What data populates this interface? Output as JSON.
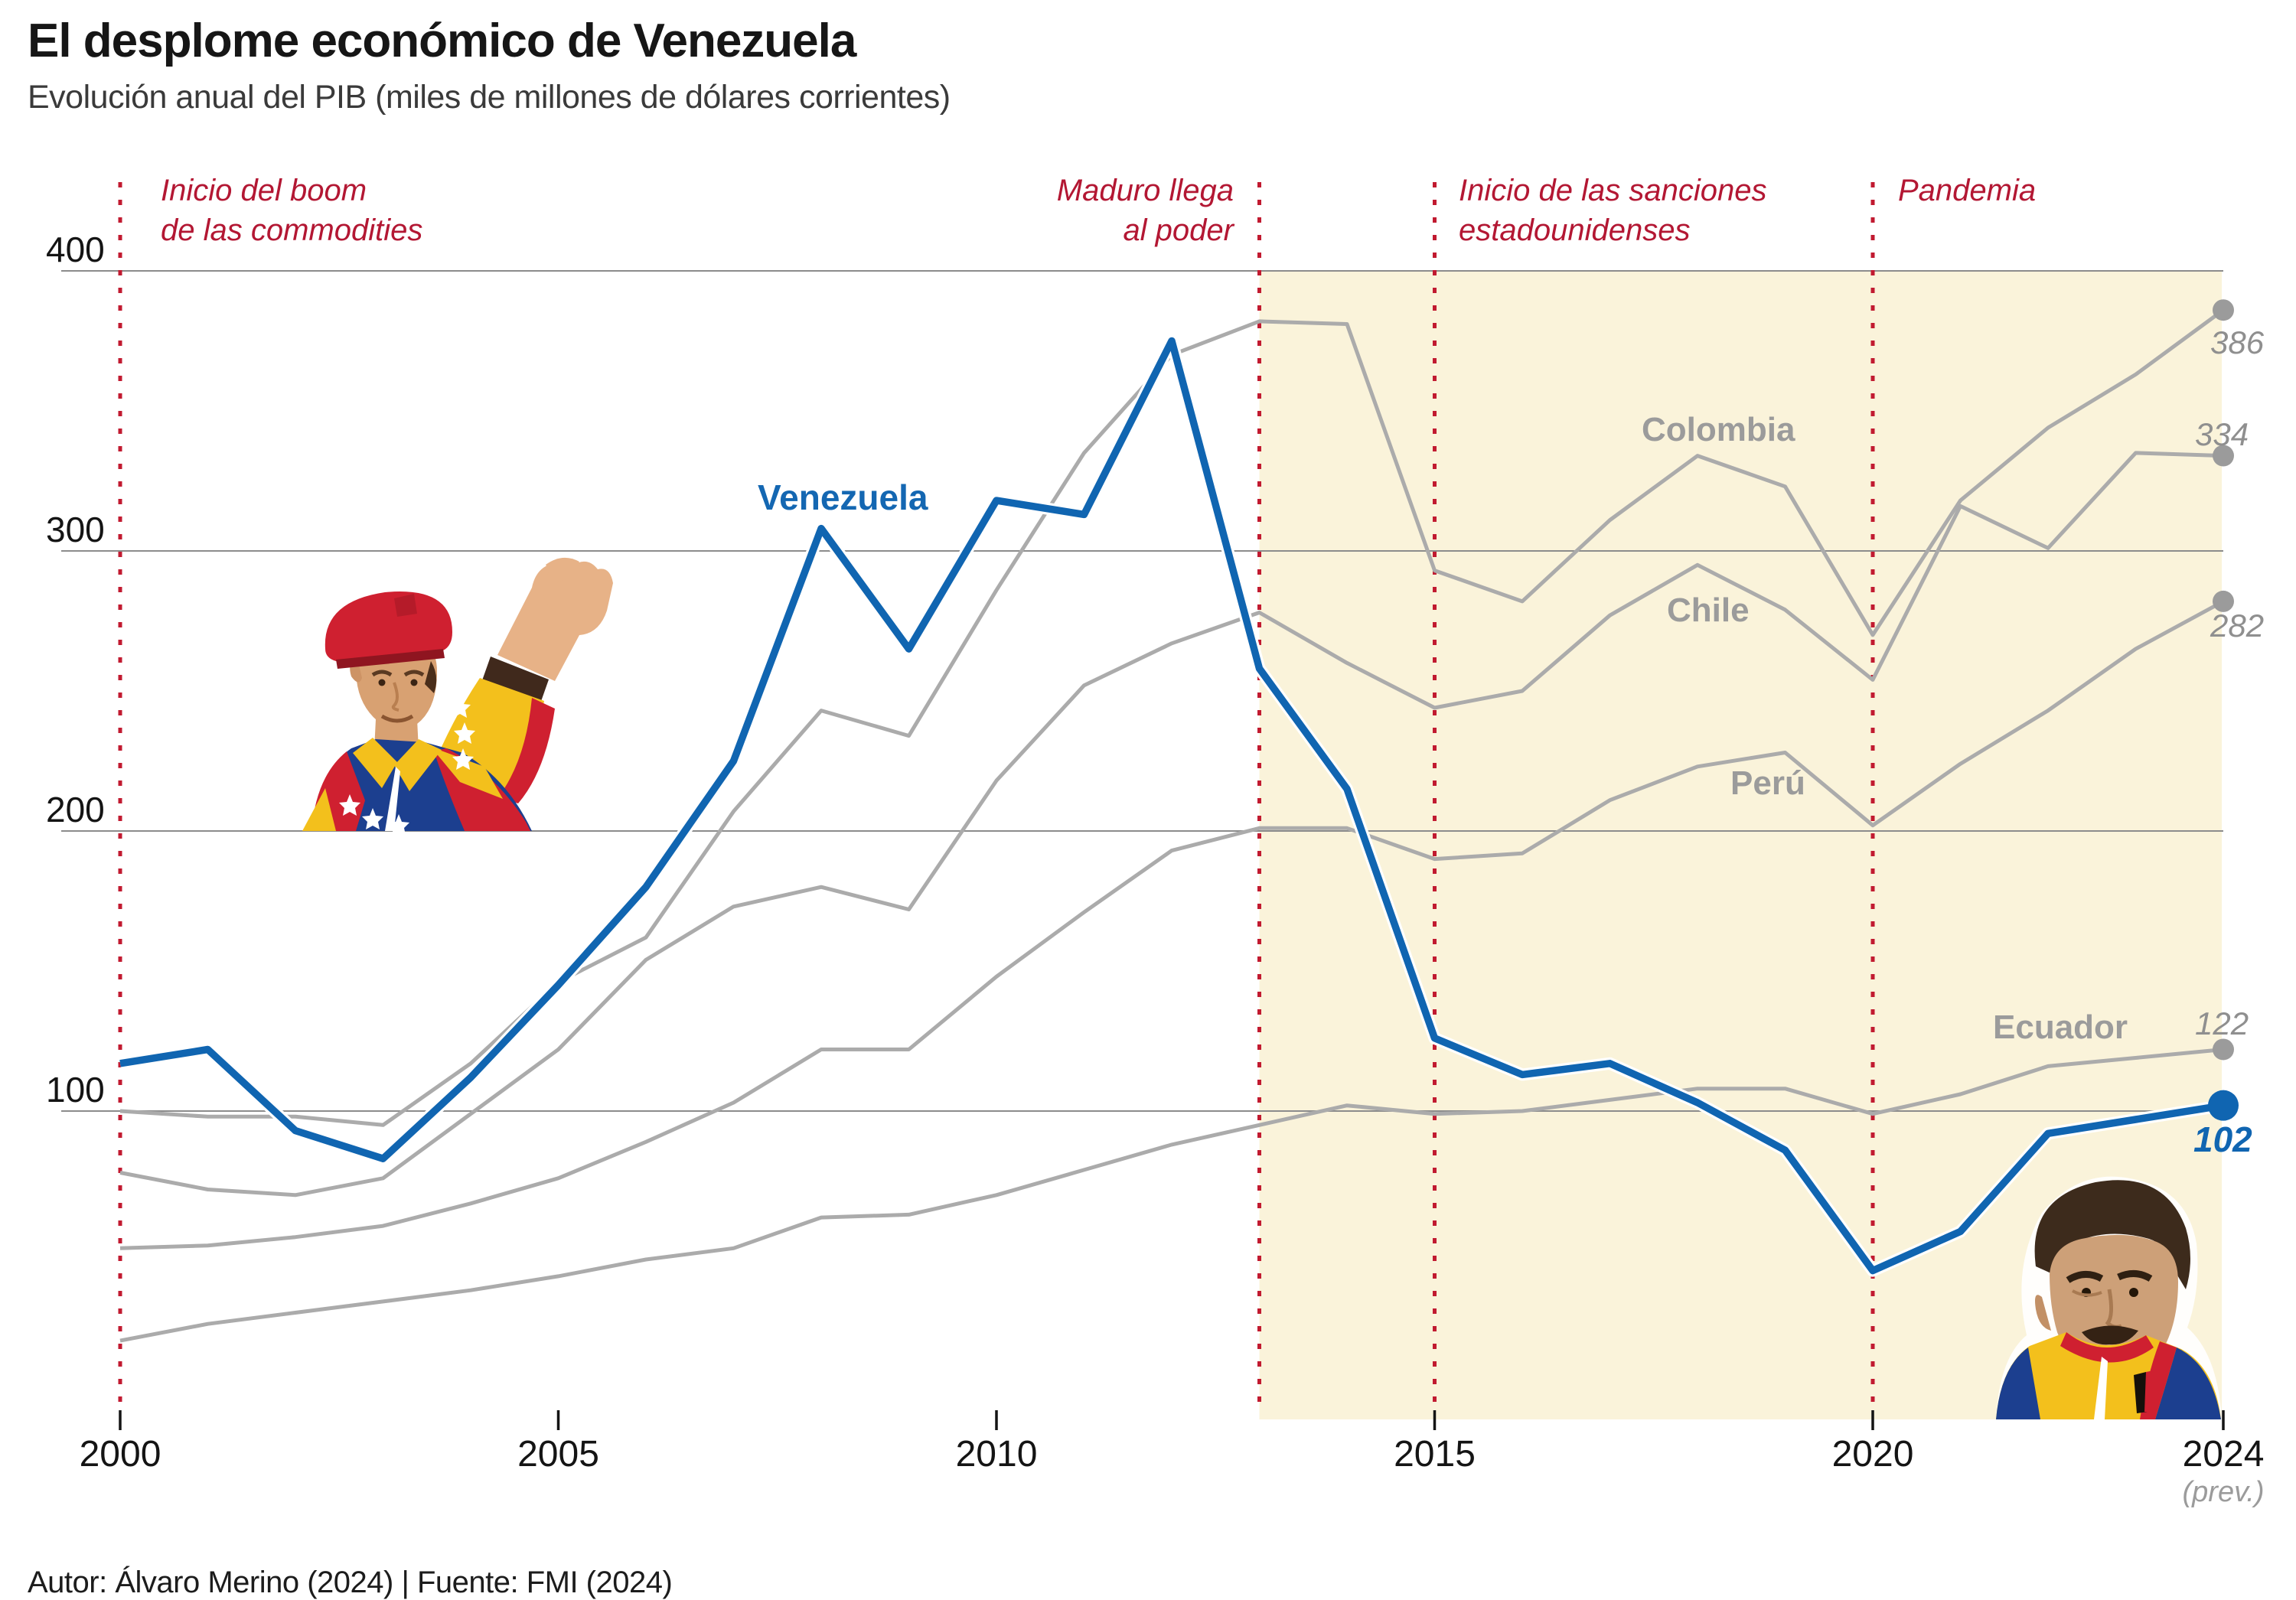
{
  "header": {
    "title": "El desplome económico de Venezuela",
    "subtitle": "Evolución anual del PIB (miles de millones de dólares corrientes)"
  },
  "chart_data": {
    "type": "line",
    "title": "El desplome económico de Venezuela",
    "subtitle": "Evolución anual del PIB (miles de millones de dólares corrientes)",
    "xlabel": "",
    "ylabel": "PIB (miles de millones de dólares corrientes)",
    "x": [
      2000,
      2001,
      2002,
      2003,
      2004,
      2005,
      2006,
      2007,
      2008,
      2009,
      2010,
      2011,
      2012,
      2013,
      2014,
      2015,
      2016,
      2017,
      2018,
      2019,
      2020,
      2021,
      2022,
      2023,
      2024
    ],
    "xticks": [
      2000,
      2005,
      2010,
      2015,
      2020,
      2024
    ],
    "last_xtick_note": "(prev.)",
    "yticks": [
      100,
      200,
      300,
      400
    ],
    "ylim": [
      0,
      440
    ],
    "grid": "horizontal",
    "legend_position": "inline-labels",
    "highlight_region": {
      "from_year": 2013,
      "to_year": 2024,
      "color": "#faf3da"
    },
    "series": [
      {
        "name": "Venezuela",
        "color": "#1065b1",
        "emphasis": true,
        "end_label": "102",
        "values": [
          117,
          122,
          93,
          83,
          112,
          145,
          180,
          225,
          308,
          265,
          318,
          313,
          375,
          258,
          215,
          126,
          113,
          117,
          103,
          86,
          43,
          57,
          92,
          97,
          102
        ]
      },
      {
        "name": "Colombia",
        "color": "#ababab",
        "emphasis": false,
        "end_label": "386",
        "values": [
          100,
          98,
          98,
          95,
          117,
          146,
          162,
          207,
          243,
          234,
          286,
          335,
          370,
          382,
          381,
          293,
          282,
          311,
          334,
          323,
          270,
          318,
          344,
          363,
          386
        ]
      },
      {
        "name": "Chile",
        "color": "#ababab",
        "emphasis": false,
        "end_label": "334",
        "values": [
          78,
          72,
          70,
          76,
          99,
          122,
          154,
          173,
          180,
          172,
          218,
          252,
          267,
          278,
          260,
          244,
          250,
          277,
          295,
          279,
          254,
          316,
          301,
          335,
          334
        ]
      },
      {
        "name": "Perú",
        "color": "#ababab",
        "emphasis": false,
        "end_label": "282",
        "values": [
          51,
          52,
          55,
          59,
          67,
          76,
          89,
          103,
          122,
          122,
          148,
          171,
          193,
          201,
          201,
          190,
          192,
          211,
          223,
          228,
          202,
          224,
          243,
          265,
          282
        ]
      },
      {
        "name": "Ecuador",
        "color": "#ababab",
        "emphasis": false,
        "end_label": "122",
        "values": [
          18,
          24,
          28,
          32,
          36,
          41,
          47,
          51,
          62,
          63,
          70,
          79,
          88,
          95,
          102,
          99,
          100,
          104,
          108,
          108,
          99,
          106,
          116,
          119,
          122
        ]
      }
    ],
    "annotations": [
      {
        "year": 2000,
        "lines": [
          "Inicio del boom",
          "de las commodities"
        ]
      },
      {
        "year": 2013,
        "lines": [
          "Maduro llega",
          "al poder"
        ]
      },
      {
        "year": 2015,
        "lines": [
          "Inicio de las sanciones",
          "estadounidenses"
        ]
      },
      {
        "year": 2020,
        "lines": [
          "Pandemia"
        ]
      }
    ],
    "annotation_color": "#b31733",
    "dotted_line_color": "#c11a30"
  },
  "footer": {
    "credit": "Autor: Álvaro Merino (2024) | Fuente: FMI (2024)"
  }
}
